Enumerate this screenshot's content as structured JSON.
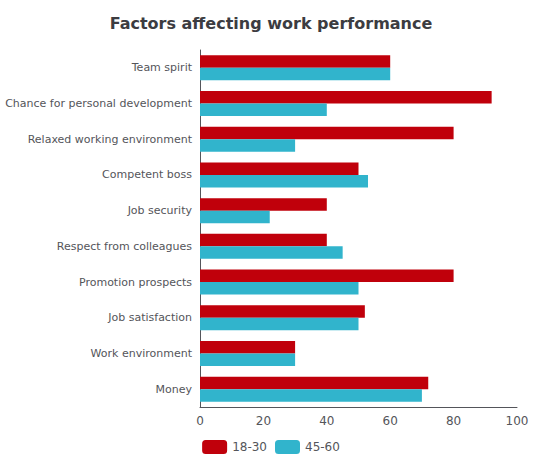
{
  "chart_data": {
    "type": "bar",
    "orientation": "horizontal",
    "title": "Factors affecting work performance",
    "categories": [
      "Team spirit",
      "Chance for personal development",
      "Relaxed working environment",
      "Competent boss",
      "Job security",
      "Respect from colleagues",
      "Promotion prospects",
      "Job satisfaction",
      "Work environment",
      "Money"
    ],
    "series": [
      {
        "name": "18-30",
        "color": "#C0000B",
        "values": [
          60,
          92,
          80,
          50,
          40,
          40,
          80,
          52,
          30,
          72
        ]
      },
      {
        "name": "45-60",
        "color": "#31B4CC",
        "values": [
          60,
          40,
          30,
          53,
          22,
          45,
          50,
          50,
          30,
          70
        ]
      }
    ],
    "xlim": [
      0,
      100
    ],
    "xticks": [
      0,
      20,
      40,
      60,
      80,
      100
    ],
    "grid": false,
    "legend": "bottom"
  }
}
